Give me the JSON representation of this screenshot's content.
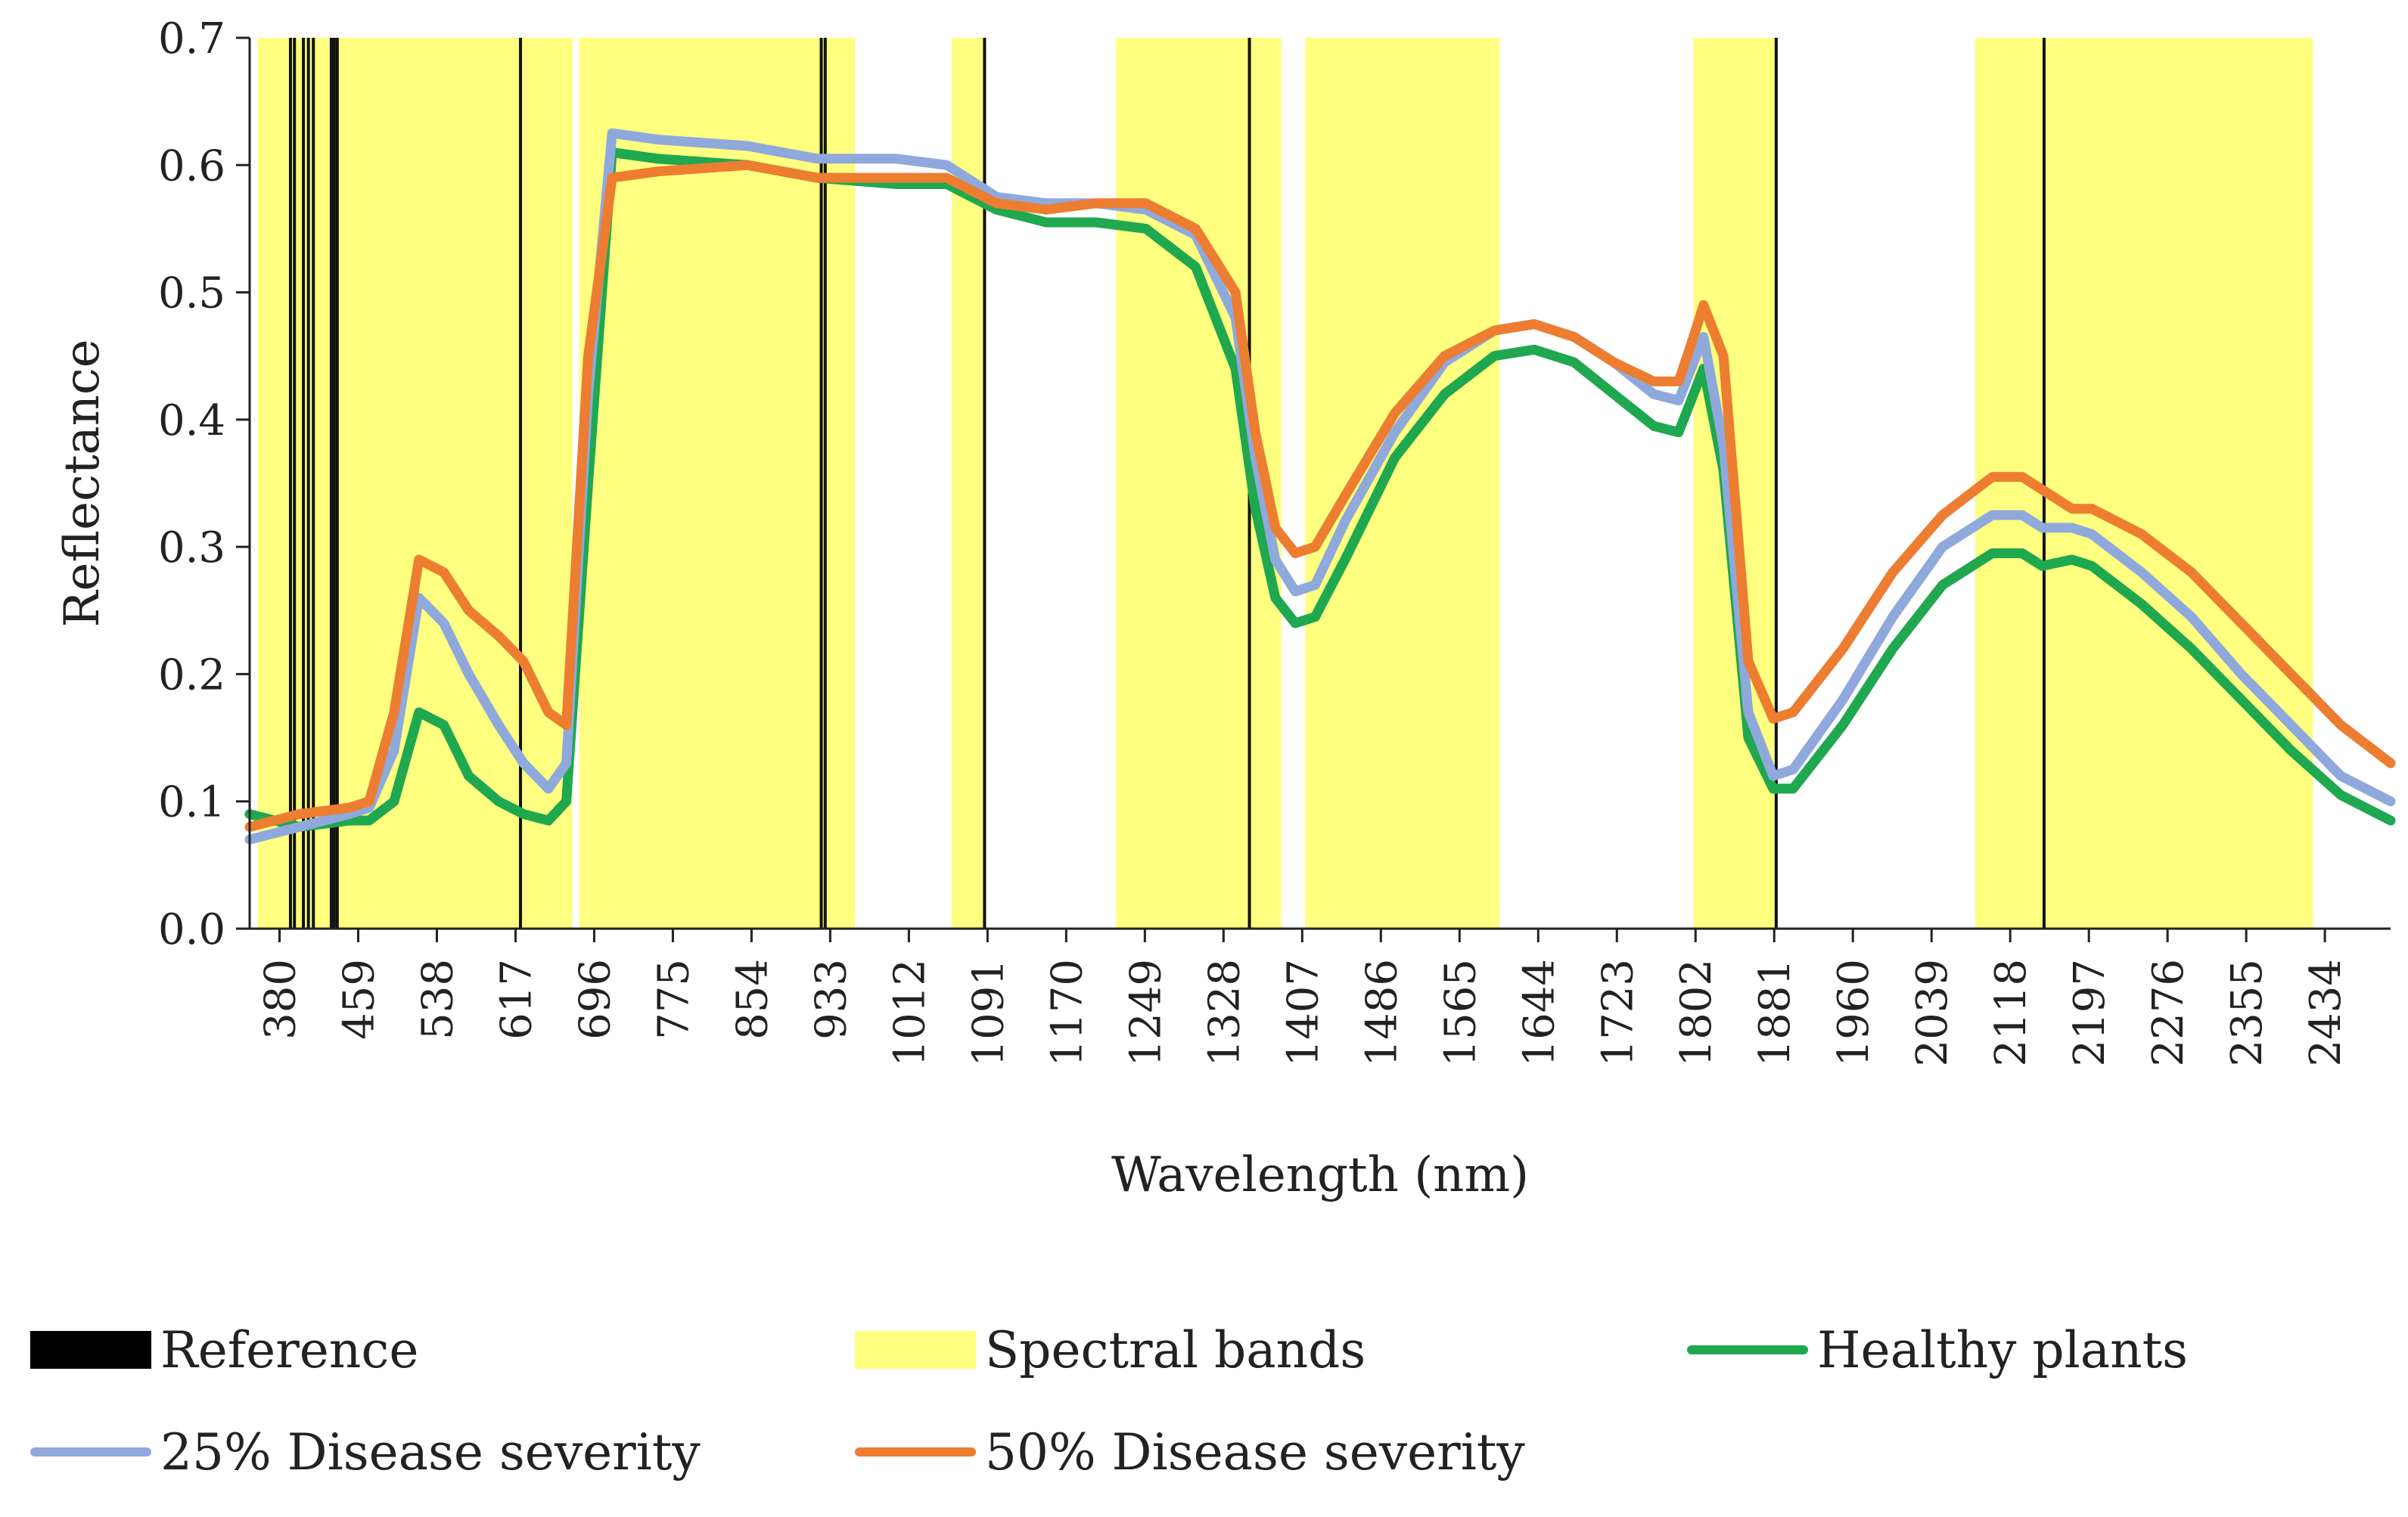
{
  "chart_data": {
    "type": "line",
    "title": "",
    "xlabel": "Wavelength (nm)",
    "ylabel": "Reflectance",
    "xlim": [
      350,
      2500
    ],
    "ylim": [
      0,
      0.7
    ],
    "y_ticks": [
      "0.0",
      "0.1",
      "0.2",
      "0.3",
      "0.4",
      "0.5",
      "0.6",
      "0.7"
    ],
    "x_ticks": [
      380,
      459,
      538,
      617,
      696,
      775,
      854,
      933,
      1012,
      1091,
      1170,
      1249,
      1328,
      1407,
      1486,
      1565,
      1644,
      1723,
      1802,
      1881,
      1960,
      2039,
      2118,
      2197,
      2276,
      2355,
      2434
    ],
    "spectral_bands": [
      [
        358,
        674
      ],
      [
        681,
        958
      ],
      [
        1055,
        1090
      ],
      [
        1220,
        1386
      ],
      [
        1410,
        1605
      ],
      [
        1800,
        1883
      ],
      [
        2083,
        2422
      ]
    ],
    "reference_lines": [
      391,
      395,
      404,
      409,
      414,
      432,
      435,
      438,
      622,
      924,
      928,
      1088,
      1354,
      1883,
      2152
    ],
    "series": [
      {
        "name": "Healthy plants",
        "color": "#1fa84f",
        "x": [
          350,
          400,
          450,
          470,
          495,
          520,
          545,
          570,
          600,
          625,
          650,
          668,
          690,
          714,
          760,
          850,
          920,
          1000,
          1050,
          1100,
          1150,
          1200,
          1250,
          1300,
          1340,
          1360,
          1380,
          1400,
          1420,
          1450,
          1500,
          1550,
          1600,
          1640,
          1680,
          1720,
          1760,
          1785,
          1800,
          1810,
          1830,
          1855,
          1880,
          1900,
          1950,
          2000,
          2050,
          2100,
          2130,
          2150,
          2180,
          2200,
          2250,
          2300,
          2350,
          2400,
          2450,
          2500
        ],
        "values": [
          0.09,
          0.08,
          0.085,
          0.085,
          0.1,
          0.17,
          0.16,
          0.12,
          0.1,
          0.09,
          0.085,
          0.1,
          0.35,
          0.61,
          0.605,
          0.6,
          0.59,
          0.585,
          0.585,
          0.565,
          0.555,
          0.555,
          0.55,
          0.52,
          0.44,
          0.33,
          0.26,
          0.24,
          0.245,
          0.29,
          0.37,
          0.42,
          0.45,
          0.455,
          0.445,
          0.42,
          0.395,
          0.39,
          0.42,
          0.44,
          0.36,
          0.15,
          0.11,
          0.11,
          0.16,
          0.22,
          0.27,
          0.295,
          0.295,
          0.285,
          0.29,
          0.285,
          0.255,
          0.22,
          0.18,
          0.14,
          0.105,
          0.085
        ]
      },
      {
        "name": "25% Disease severity",
        "color": "#8fa9dc",
        "x": [
          350,
          400,
          450,
          470,
          495,
          520,
          545,
          570,
          600,
          625,
          650,
          668,
          690,
          714,
          760,
          850,
          920,
          1000,
          1050,
          1100,
          1150,
          1200,
          1250,
          1300,
          1340,
          1360,
          1380,
          1400,
          1420,
          1450,
          1500,
          1550,
          1600,
          1640,
          1680,
          1720,
          1760,
          1785,
          1800,
          1810,
          1830,
          1855,
          1880,
          1900,
          1950,
          2000,
          2050,
          2100,
          2130,
          2150,
          2180,
          2200,
          2250,
          2300,
          2350,
          2400,
          2450,
          2500
        ],
        "values": [
          0.07,
          0.08,
          0.09,
          0.095,
          0.14,
          0.26,
          0.24,
          0.2,
          0.16,
          0.13,
          0.11,
          0.13,
          0.42,
          0.625,
          0.62,
          0.615,
          0.605,
          0.605,
          0.6,
          0.575,
          0.57,
          0.57,
          0.565,
          0.545,
          0.48,
          0.37,
          0.29,
          0.265,
          0.27,
          0.32,
          0.39,
          0.445,
          0.47,
          0.475,
          0.465,
          0.445,
          0.42,
          0.415,
          0.445,
          0.465,
          0.38,
          0.17,
          0.12,
          0.125,
          0.18,
          0.245,
          0.3,
          0.325,
          0.325,
          0.315,
          0.315,
          0.31,
          0.28,
          0.245,
          0.2,
          0.16,
          0.12,
          0.1
        ]
      },
      {
        "name": "50% Disease severity",
        "color": "#ed7d31",
        "x": [
          350,
          400,
          450,
          470,
          495,
          520,
          545,
          570,
          600,
          625,
          650,
          668,
          690,
          714,
          760,
          850,
          920,
          1000,
          1050,
          1100,
          1150,
          1200,
          1250,
          1300,
          1340,
          1360,
          1380,
          1400,
          1420,
          1450,
          1500,
          1550,
          1600,
          1640,
          1680,
          1720,
          1760,
          1785,
          1800,
          1810,
          1830,
          1855,
          1880,
          1900,
          1950,
          2000,
          2050,
          2100,
          2130,
          2150,
          2180,
          2200,
          2250,
          2300,
          2350,
          2400,
          2450,
          2500
        ],
        "values": [
          0.08,
          0.09,
          0.095,
          0.1,
          0.17,
          0.29,
          0.28,
          0.25,
          0.23,
          0.21,
          0.17,
          0.16,
          0.45,
          0.59,
          0.595,
          0.6,
          0.59,
          0.59,
          0.59,
          0.57,
          0.565,
          0.57,
          0.57,
          0.55,
          0.5,
          0.39,
          0.315,
          0.295,
          0.3,
          0.34,
          0.405,
          0.45,
          0.47,
          0.475,
          0.465,
          0.445,
          0.43,
          0.43,
          0.465,
          0.49,
          0.45,
          0.21,
          0.165,
          0.17,
          0.22,
          0.28,
          0.325,
          0.355,
          0.355,
          0.345,
          0.33,
          0.33,
          0.31,
          0.28,
          0.24,
          0.2,
          0.16,
          0.13
        ]
      }
    ],
    "legend": {
      "position": "bottom",
      "entries": [
        {
          "label": "Reference",
          "kind": "box",
          "color": "#000000"
        },
        {
          "label": "Spectral bands",
          "kind": "box",
          "color": "#ffff80"
        },
        {
          "label": "Healthy plants",
          "kind": "line",
          "color": "#1fa84f"
        },
        {
          "label": "25% Disease severity",
          "kind": "line",
          "color": "#8fa9dc"
        },
        {
          "label": "50% Disease severity",
          "kind": "line",
          "color": "#ed7d31"
        }
      ]
    }
  }
}
